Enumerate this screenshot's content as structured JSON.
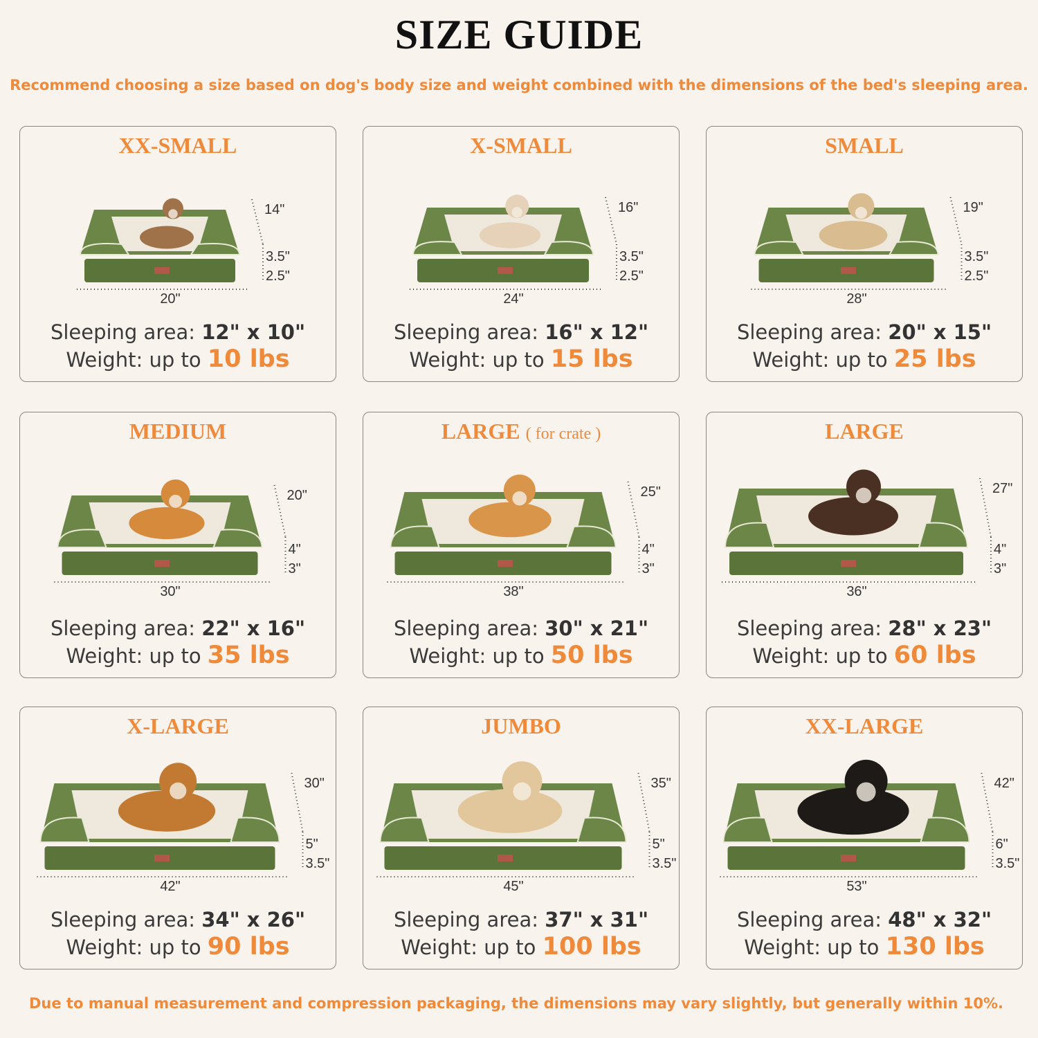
{
  "title": "SIZE GUIDE",
  "subtitle": "Recommend choosing a size based on dog's body size and weight combined with the dimensions of the bed's sleeping area.",
  "footer": "Due to manual measurement and compression packaging, the dimensions may vary slightly, but generally within 10%.",
  "labels": {
    "sleeping": "Sleeping area:",
    "weight": "Weight: up to"
  },
  "colors": {
    "accent": "#ef8a3a",
    "bed_green": "#6b8646",
    "bed_dark": "#5a7439",
    "cushion": "#efe8dd",
    "background": "#f9f3ee"
  },
  "sizes": [
    {
      "name": "XX-SMALL",
      "note": "",
      "length": "20\"",
      "depth": "14\"",
      "bolster": "3.5\"",
      "base": "2.5\"",
      "sleeping": "12\" x 10\"",
      "weight": "10 lbs",
      "pet": "cat",
      "pet_color": "#a0724a"
    },
    {
      "name": "X-SMALL",
      "note": "",
      "length": "24\"",
      "depth": "16\"",
      "bolster": "3.5\"",
      "base": "2.5\"",
      "sleeping": "16\" x 12\"",
      "weight": "15 lbs",
      "pet": "dog",
      "pet_color": "#e6d2b8"
    },
    {
      "name": "SMALL",
      "note": "",
      "length": "28\"",
      "depth": "19\"",
      "bolster": "3.5\"",
      "base": "2.5\"",
      "sleeping": "20\" x 15\"",
      "weight": "25 lbs",
      "pet": "dog",
      "pet_color": "#d9bd90"
    },
    {
      "name": "MEDIUM",
      "note": "",
      "length": "30\"",
      "depth": "20\"",
      "bolster": "4\"",
      "base": "3\"",
      "sleeping": "22\" x 16\"",
      "weight": "35 lbs",
      "pet": "dog",
      "pet_color": "#d58a3c"
    },
    {
      "name": "LARGE",
      "note": "( for crate )",
      "length": "38\"",
      "depth": "25\"",
      "bolster": "4\"",
      "base": "3\"",
      "sleeping": "30\" x 21\"",
      "weight": "50 lbs",
      "pet": "dog",
      "pet_color": "#d9954a"
    },
    {
      "name": "LARGE",
      "note": "",
      "length": "36\"",
      "depth": "27\"",
      "bolster": "4\"",
      "base": "3\"",
      "sleeping": "28\" x 23\"",
      "weight": "60 lbs",
      "pet": "dog",
      "pet_color": "#4a3022"
    },
    {
      "name": "X-LARGE",
      "note": "",
      "length": "42\"",
      "depth": "30\"",
      "bolster": "5\"",
      "base": "3.5\"",
      "sleeping": "34\" x 26\"",
      "weight": "90 lbs",
      "pet": "dog",
      "pet_color": "#c27a32"
    },
    {
      "name": "JUMBO",
      "note": "",
      "length": "45\"",
      "depth": "35\"",
      "bolster": "5\"",
      "base": "3.5\"",
      "sleeping": "37\" x 31\"",
      "weight": "100 lbs",
      "pet": "dog",
      "pet_color": "#e3c79c"
    },
    {
      "name": "XX-LARGE",
      "note": "",
      "length": "53\"",
      "depth": "42\"",
      "bolster": "6\"",
      "base": "3.5\"",
      "sleeping": "48\" x 32\"",
      "weight": "130 lbs",
      "pet": "dog",
      "pet_color": "#1e1a18"
    }
  ]
}
